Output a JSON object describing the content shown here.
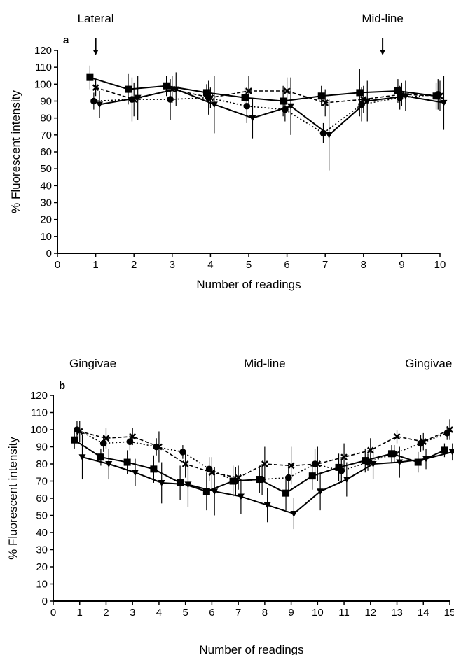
{
  "chart_data": [
    {
      "type": "line",
      "panel_label": "a",
      "xlabel": "Number of readings",
      "ylabel": "% Fluorescent intensity",
      "xlim": [
        0,
        10
      ],
      "ylim": [
        0,
        120
      ],
      "xticks": [
        0,
        1,
        2,
        3,
        4,
        5,
        6,
        7,
        8,
        9,
        10
      ],
      "yticks": [
        0,
        10,
        20,
        30,
        40,
        50,
        60,
        70,
        80,
        90,
        100,
        110,
        120
      ],
      "grid": false,
      "annotations": [
        {
          "text": "Lateral",
          "x": 1
        },
        {
          "text": "Mid-line",
          "x": 8.5
        }
      ],
      "arrows": [
        1,
        8.5
      ],
      "series": [
        {
          "marker": "square",
          "line": "solid",
          "x": [
            0.85,
            1.85,
            2.85,
            3.9,
            4.9,
            5.9,
            6.9,
            7.9,
            8.9,
            9.9
          ],
          "y": [
            104,
            97,
            99,
            95,
            92,
            90,
            93,
            95,
            96,
            93
          ],
          "err": [
            7,
            9,
            6,
            5,
            6,
            9,
            6,
            14,
            7,
            8
          ]
        },
        {
          "marker": "cross",
          "line": "dashed",
          "x": [
            1,
            2,
            3,
            4,
            5,
            6,
            7,
            8,
            9,
            10
          ],
          "y": [
            98,
            91,
            97,
            92,
            96,
            96,
            89,
            91,
            94,
            93
          ],
          "err": [
            5,
            10,
            8,
            6,
            9,
            8,
            8,
            8,
            7,
            9
          ]
        },
        {
          "marker": "circle",
          "line": "dotted",
          "x": [
            0.95,
            1.95,
            2.95,
            3.95,
            4.95,
            5.95,
            6.95,
            7.95,
            8.95,
            9.95
          ],
          "y": [
            90,
            91,
            91,
            92,
            87,
            85,
            71,
            88,
            92,
            94
          ],
          "err": [
            5,
            13,
            12,
            10,
            10,
            7,
            6,
            10,
            7,
            9
          ]
        },
        {
          "marker": "triangle",
          "line": "solid",
          "x": [
            1.1,
            2.1,
            3.1,
            4.1,
            5.1,
            6.1,
            7.1,
            8.1,
            9.1,
            10.1
          ],
          "y": [
            88,
            92,
            97,
            88,
            80,
            87,
            70,
            90,
            93,
            89
          ],
          "err": [
            8,
            13,
            10,
            17,
            12,
            17,
            21,
            12,
            9,
            16
          ]
        }
      ]
    },
    {
      "type": "line",
      "panel_label": "b",
      "xlabel": "Number of readings",
      "ylabel": "% Fluorescent intensity",
      "xlim": [
        0,
        15
      ],
      "ylim": [
        0,
        120
      ],
      "xticks": [
        0,
        1,
        2,
        3,
        4,
        5,
        6,
        7,
        8,
        9,
        10,
        11,
        12,
        13,
        14,
        15
      ],
      "yticks": [
        0,
        10,
        20,
        30,
        40,
        50,
        60,
        70,
        80,
        90,
        100,
        110,
        120
      ],
      "grid": false,
      "annotations": [
        {
          "text": "Gingivae",
          "x": 1.5
        },
        {
          "text": "Mid-line",
          "x": 8
        },
        {
          "text": "Gingivae",
          "x": 14.2
        }
      ],
      "series": [
        {
          "marker": "square",
          "line": "solid",
          "x": [
            0.8,
            1.8,
            2.8,
            3.8,
            4.8,
            5.8,
            6.8,
            7.8,
            8.8,
            9.8,
            10.8,
            11.8,
            12.8,
            13.8,
            14.8
          ],
          "y": [
            94,
            84,
            81,
            77,
            69,
            64,
            70,
            71,
            63,
            73,
            78,
            82,
            86,
            81,
            88
          ],
          "err": [
            5,
            5,
            7,
            8,
            10,
            11,
            9,
            8,
            10,
            8,
            8,
            7,
            5,
            6,
            4
          ]
        },
        {
          "marker": "cross",
          "line": "dashed",
          "x": [
            1,
            2,
            3,
            4,
            5,
            6,
            7,
            8,
            9,
            10,
            11,
            12,
            13,
            14,
            15
          ],
          "y": [
            99,
            95,
            96,
            90,
            80,
            75,
            72,
            80,
            79,
            80,
            84,
            88,
            96,
            93,
            100
          ],
          "err": [
            6,
            6,
            5,
            9,
            8,
            9,
            7,
            10,
            11,
            10,
            8,
            7,
            4,
            5,
            6
          ]
        },
        {
          "marker": "circle",
          "line": "dotted",
          "x": [
            0.9,
            1.9,
            2.9,
            3.9,
            4.9,
            5.9,
            6.9,
            7.9,
            8.9,
            9.9,
            10.9,
            11.9,
            12.9,
            13.9,
            14.9
          ],
          "y": [
            100,
            92,
            93,
            90,
            87,
            77,
            70,
            71,
            72,
            80,
            76,
            81,
            86,
            92,
            98
          ],
          "err": [
            5,
            5,
            5,
            5,
            4,
            7,
            8,
            9,
            8,
            9,
            7,
            5,
            5,
            5,
            4
          ]
        },
        {
          "marker": "triangle",
          "line": "solid",
          "x": [
            1.1,
            2.1,
            3.1,
            4.1,
            5.1,
            6.1,
            7.1,
            8.1,
            9.1,
            10.1,
            11.1,
            12.1,
            13.1,
            14.1,
            15.1
          ],
          "y": [
            84,
            80,
            75,
            69,
            68,
            64,
            61,
            56,
            51,
            64,
            71,
            80,
            81,
            83,
            87
          ],
          "err": [
            13,
            9,
            8,
            12,
            13,
            14,
            10,
            10,
            9,
            11,
            10,
            9,
            9,
            6,
            5
          ]
        }
      ]
    }
  ]
}
